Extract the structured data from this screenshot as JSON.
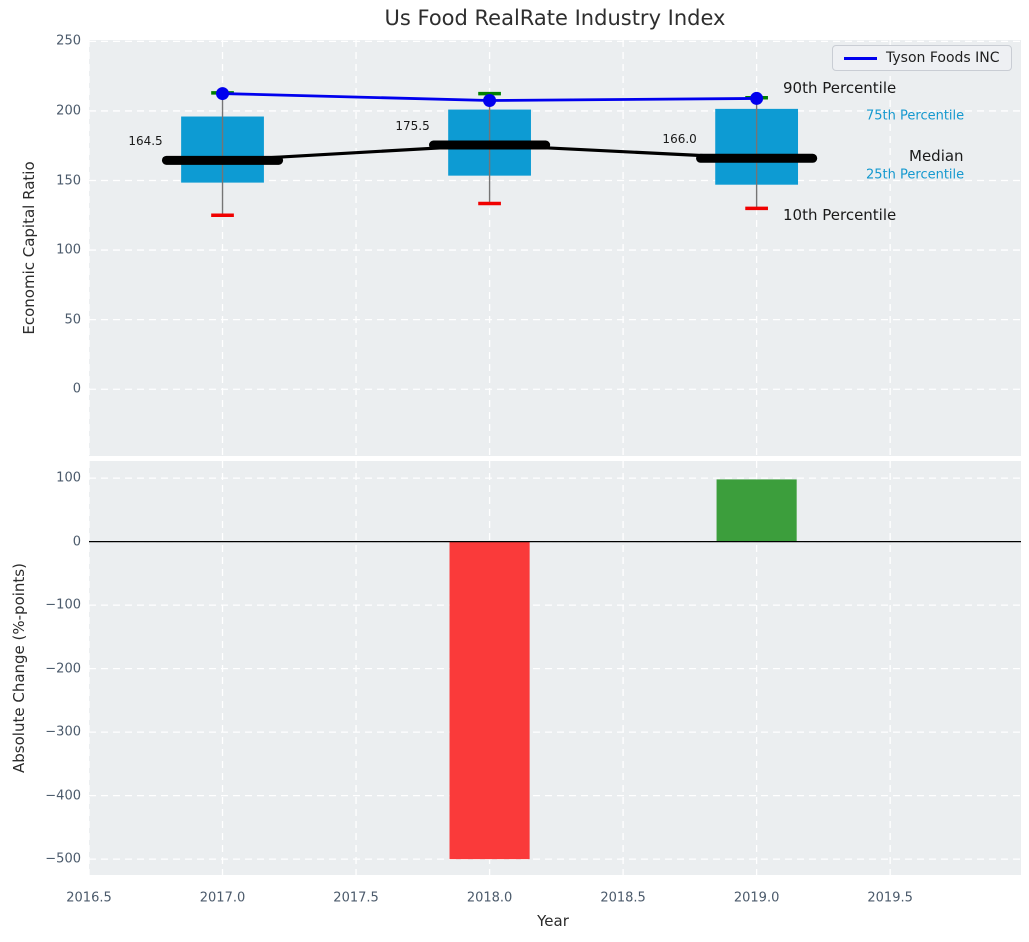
{
  "chart_data": {
    "type": "combo",
    "title": "Us Food RealRate Industry Index",
    "xlabel": "Year",
    "background": "#ebeef0",
    "grid_color": "#ffffff",
    "tick_color": "#4b5a6b",
    "x": {
      "lim": [
        2016.5,
        2019.99
      ],
      "ticks": [
        {
          "v": 2016.5,
          "label": "2016.5"
        },
        {
          "v": 2017.0,
          "label": "2017.0"
        },
        {
          "v": 2017.5,
          "label": "2017.5"
        },
        {
          "v": 2018.0,
          "label": "2018.0"
        },
        {
          "v": 2018.5,
          "label": "2018.5"
        },
        {
          "v": 2019.0,
          "label": "2019.0"
        },
        {
          "v": 2019.5,
          "label": "2019.5"
        }
      ]
    },
    "legend": {
      "position": "upper right",
      "entries": [
        {
          "label": "Tyson Foods INC",
          "color": "#0000ee"
        }
      ]
    },
    "top_panel": {
      "type": "boxplot+line",
      "ylabel": "Economic Capital Ratio",
      "ylim": [
        -48,
        251
      ],
      "grid": true,
      "yticks": [
        {
          "v": 250,
          "label": "250"
        },
        {
          "v": 200,
          "label": "200"
        },
        {
          "v": 150,
          "label": "150"
        },
        {
          "v": 100,
          "label": "100"
        },
        {
          "v": 50,
          "label": "50"
        },
        {
          "v": 0,
          "label": "0"
        }
      ],
      "boxes": [
        {
          "x": 2017,
          "median": 164.5,
          "median_label": "164.5",
          "q1": 148.5,
          "q3": 196.0,
          "whisker_low": 125.0,
          "whisker_high": 213.0
        },
        {
          "x": 2018,
          "median": 175.5,
          "median_label": "175.5",
          "q1": 153.5,
          "q3": 201.0,
          "whisker_low": 133.5,
          "whisker_high": 212.5
        },
        {
          "x": 2019,
          "median": 166.0,
          "median_label": "166.0",
          "q1": 147.0,
          "q3": 201.5,
          "whisker_low": 130.0,
          "whisker_high": 209.5
        }
      ],
      "box_width": 0.31,
      "cap_width": 0.085,
      "median_seg_width": 0.42,
      "series": [
        {
          "name": "Tyson Foods INC",
          "x": [
            2017,
            2018,
            2019
          ],
          "y": [
            212.5,
            207.5,
            209.0
          ],
          "color": "#0000ee",
          "marker": "circle"
        },
        {
          "name": "Median trend",
          "x": [
            2017,
            2018,
            2019
          ],
          "y": [
            164.5,
            175.5,
            166.0
          ],
          "color": "#000000",
          "marker": "none"
        }
      ],
      "annotations": {
        "p90": {
          "text": "90th Percentile",
          "color": "#1a1a1a"
        },
        "p75": {
          "text": "75th Percentile",
          "color": "#1599cf"
        },
        "median": {
          "text": "Median",
          "color": "#1a1a1a"
        },
        "p25": {
          "text": "25th Percentile",
          "color": "#1599cf"
        },
        "p10": {
          "text": "10th Percentile",
          "color": "#1a1a1a"
        }
      },
      "colors": {
        "box_fill": "#0d9bd3",
        "whisker": "#757575",
        "cap_high": "#008000",
        "cap_low": "#f00000"
      }
    },
    "bottom_panel": {
      "type": "bar",
      "ylabel": "Absolute Change (%-points)",
      "ylim": [
        -525,
        127
      ],
      "grid": true,
      "zero_line": true,
      "yticks": [
        {
          "v": 100,
          "label": "100"
        },
        {
          "v": 0,
          "label": "0"
        },
        {
          "v": -100,
          "label": "−100"
        },
        {
          "v": -200,
          "label": "−200"
        },
        {
          "v": -300,
          "label": "−300"
        },
        {
          "v": -400,
          "label": "−400"
        },
        {
          "v": -500,
          "label": "−500"
        }
      ],
      "bar_width": 0.3,
      "bars": [
        {
          "x": 2018,
          "value": -500,
          "color": "#fa3a3a"
        },
        {
          "x": 2019,
          "value": 98,
          "color": "#3c9e3c"
        }
      ]
    }
  }
}
